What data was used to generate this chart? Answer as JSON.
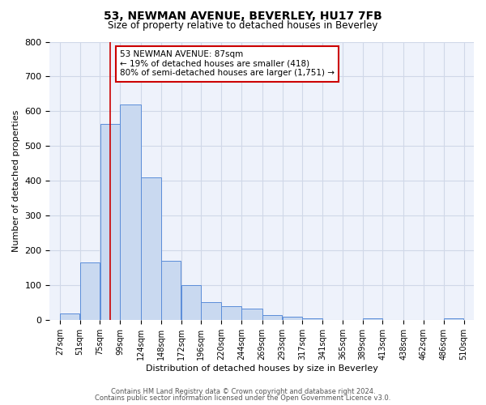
{
  "title": "53, NEWMAN AVENUE, BEVERLEY, HU17 7FB",
  "subtitle": "Size of property relative to detached houses in Beverley",
  "xlabel": "Distribution of detached houses by size in Beverley",
  "ylabel": "Number of detached properties",
  "bar_left_edges": [
    27,
    51,
    75,
    99,
    124,
    148,
    172,
    196,
    220,
    244,
    269,
    293,
    317,
    341,
    365,
    389,
    413,
    438,
    462,
    486
  ],
  "bar_heights": [
    20,
    165,
    565,
    620,
    410,
    170,
    100,
    52,
    40,
    33,
    15,
    10,
    5,
    0,
    0,
    5,
    0,
    0,
    0,
    5
  ],
  "bar_widths": [
    24,
    24,
    24,
    25,
    24,
    24,
    24,
    24,
    24,
    25,
    24,
    24,
    24,
    24,
    24,
    24,
    25,
    24,
    24,
    24
  ],
  "tick_labels": [
    "27sqm",
    "51sqm",
    "75sqm",
    "99sqm",
    "124sqm",
    "148sqm",
    "172sqm",
    "196sqm",
    "220sqm",
    "244sqm",
    "269sqm",
    "293sqm",
    "317sqm",
    "341sqm",
    "365sqm",
    "389sqm",
    "413sqm",
    "438sqm",
    "462sqm",
    "486sqm",
    "510sqm"
  ],
  "tick_positions": [
    27,
    51,
    75,
    99,
    124,
    148,
    172,
    196,
    220,
    244,
    269,
    293,
    317,
    341,
    365,
    389,
    413,
    438,
    462,
    486,
    510
  ],
  "ylim": [
    0,
    800
  ],
  "yticks": [
    0,
    100,
    200,
    300,
    400,
    500,
    600,
    700,
    800
  ],
  "xlim_left": 15,
  "xlim_right": 522,
  "property_line_x": 87,
  "bar_fill_color": "#c9d9f0",
  "bar_edge_color": "#5b8dd9",
  "property_line_color": "#cc0000",
  "annotation_box_color": "#cc0000",
  "annotation_text_line1": "53 NEWMAN AVENUE: 87sqm",
  "annotation_text_line2": "← 19% of detached houses are smaller (418)",
  "annotation_text_line3": "80% of semi-detached houses are larger (1,751) →",
  "grid_color": "#d0d8e8",
  "bg_color": "#eef2fb",
  "footer_line1": "Contains HM Land Registry data © Crown copyright and database right 2024.",
  "footer_line2": "Contains public sector information licensed under the Open Government Licence v3.0."
}
